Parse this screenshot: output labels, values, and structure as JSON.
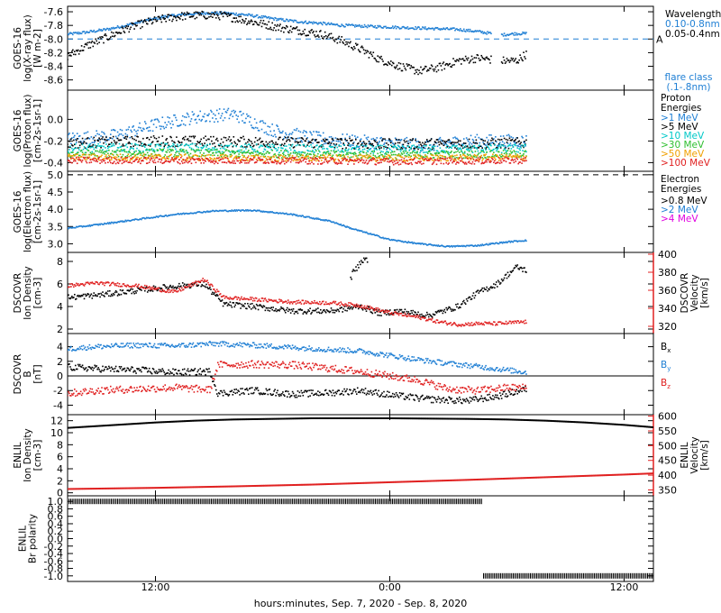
{
  "time_axis": {
    "tick_labels": [
      "12:00",
      "0:00",
      "12:00"
    ],
    "tick_hours": [
      12,
      24,
      36
    ],
    "title": "hours:minutes, Sep.  7, 2020 - Sep.  8, 2020",
    "range_hours": [
      7.5,
      37.5
    ]
  },
  "chart_data": [
    {
      "id": "xray",
      "type": "scatter",
      "ylabel": [
        "GOES-16",
        "log(X-ray flux)",
        "[W m-2]"
      ],
      "ylim": [
        -8.75,
        -7.52
      ],
      "yticks": [
        -7.6,
        -7.8,
        -8.0,
        -8.2,
        -8.4,
        -8.6
      ],
      "ytick_labels": [
        "-7.6",
        "-7.8",
        "-8.0",
        "-8.2",
        "-8.4",
        "-8.6"
      ],
      "legend_title": "Wavelength",
      "reference_line": {
        "y": -8.0,
        "label": "A",
        "color": "#1f7fd4"
      },
      "note": [
        "flare class",
        "(.1-.8nm)"
      ],
      "gaps": [
        [
          29.2,
          29.7
        ]
      ],
      "x_end": 31.0,
      "series": [
        {
          "name": "0.10-0.8nm",
          "color": "#1f7fd4",
          "x": [
            7.5,
            8.5,
            9.5,
            10.5,
            11.5,
            12.5,
            13.5,
            14.5,
            15.5,
            16.5,
            17.5,
            18.5,
            19.5,
            20.5,
            21.5,
            22.5,
            23.5,
            24.5,
            25.5,
            26.5,
            27.5,
            28.5,
            29.7,
            30.5,
            31.0
          ],
          "y": [
            -7.93,
            -7.9,
            -7.86,
            -7.8,
            -7.73,
            -7.67,
            -7.64,
            -7.62,
            -7.62,
            -7.64,
            -7.68,
            -7.72,
            -7.75,
            -7.77,
            -7.8,
            -7.81,
            -7.82,
            -7.83,
            -7.84,
            -7.85,
            -7.86,
            -7.89,
            -7.94,
            -7.92,
            -7.92
          ],
          "jitter": 0.02
        },
        {
          "name": "0.05-0.4nm",
          "color": "#000000",
          "x": [
            7.5,
            8.5,
            9.5,
            10.5,
            11.5,
            12.5,
            13.5,
            14.5,
            15.5,
            16.5,
            17.5,
            18.5,
            19.5,
            20.5,
            21.5,
            22.5,
            23.5,
            24.5,
            25.5,
            26.5,
            27.5,
            28.5,
            29.7,
            30.5,
            31.0
          ],
          "y": [
            -8.25,
            -8.1,
            -7.98,
            -7.85,
            -7.76,
            -7.7,
            -7.66,
            -7.65,
            -7.66,
            -7.72,
            -7.78,
            -7.84,
            -7.88,
            -7.93,
            -8.02,
            -8.15,
            -8.3,
            -8.4,
            -8.47,
            -8.42,
            -8.32,
            -8.28,
            -8.32,
            -8.32,
            -8.22
          ],
          "jitter": 0.06
        }
      ]
    },
    {
      "id": "proton",
      "type": "scatter",
      "ylabel": [
        "GOES-16",
        "log(Proton flux)",
        "[cm-2s-1sr-1]"
      ],
      "ylim": [
        -0.48,
        0.27
      ],
      "yticks": [
        0.0,
        -0.2,
        -0.4
      ],
      "ytick_labels": [
        "0.0",
        "-0.2",
        "-0.4"
      ],
      "legend_title": [
        "Proton",
        "Energies"
      ],
      "x_end": 31.0,
      "series": [
        {
          "name": ">1 MeV",
          "color": "#1f7fd4",
          "x": [
            7.5,
            10,
            12,
            14,
            16,
            18,
            20,
            22,
            24,
            26,
            28,
            31
          ],
          "y": [
            -0.18,
            -0.15,
            -0.05,
            0.02,
            0.05,
            -0.1,
            -0.17,
            -0.2,
            -0.22,
            -0.24,
            -0.2,
            -0.2
          ],
          "jitter": 0.06
        },
        {
          "name": ">5 MeV",
          "color": "#000000",
          "x": [
            7.5,
            12,
            18,
            24,
            31
          ],
          "y": [
            -0.22,
            -0.2,
            -0.21,
            -0.23,
            -0.22
          ],
          "jitter": 0.05
        },
        {
          "name": ">10 MeV",
          "color": "#00c8c8",
          "x": [
            7.5,
            12,
            18,
            24,
            31
          ],
          "y": [
            -0.27,
            -0.26,
            -0.27,
            -0.28,
            -0.27
          ],
          "jitter": 0.04
        },
        {
          "name": ">30 MeV",
          "color": "#2fbf2f",
          "x": [
            7.5,
            12,
            18,
            24,
            31
          ],
          "y": [
            -0.32,
            -0.31,
            -0.32,
            -0.33,
            -0.32
          ],
          "jitter": 0.035
        },
        {
          "name": ">50 MeV",
          "color": "#f0a000",
          "x": [
            7.5,
            12,
            18,
            24,
            31
          ],
          "y": [
            -0.35,
            -0.35,
            -0.36,
            -0.36,
            -0.35
          ],
          "jitter": 0.03
        },
        {
          "name": ">100 MeV",
          "color": "#e02020",
          "x": [
            7.5,
            12,
            18,
            24,
            31
          ],
          "y": [
            -0.38,
            -0.38,
            -0.38,
            -0.39,
            -0.38
          ],
          "jitter": 0.03
        }
      ]
    },
    {
      "id": "electron",
      "type": "scatter",
      "ylabel": [
        "GOES-16",
        "log(Electron flux)",
        "[cm-2s-1sr-1]"
      ],
      "ylim": [
        2.75,
        5.1
      ],
      "yticks": [
        5.0,
        4.5,
        4.0,
        3.5,
        3.0
      ],
      "ytick_labels": [
        "5.0",
        "4.5",
        "4.0",
        "3.5",
        "3.0"
      ],
      "legend_title": [
        "Electron",
        "Energies"
      ],
      "reference_line": {
        "y": 5.0,
        "color": "#000000"
      },
      "x_end": 31.0,
      "series": [
        {
          "name": ">0.8 MeV",
          "color": "#000000",
          "x": [],
          "y": []
        },
        {
          "name": ">2 MeV",
          "color": "#1f7fd4",
          "x": [
            7.5,
            9,
            11,
            13,
            15,
            17,
            19,
            21,
            22,
            24,
            25.5,
            27,
            28.5,
            30,
            31
          ],
          "y": [
            3.45,
            3.55,
            3.7,
            3.85,
            3.95,
            3.97,
            3.85,
            3.65,
            3.45,
            3.12,
            3.0,
            2.92,
            2.95,
            3.05,
            3.1
          ],
          "jitter": 0.02
        },
        {
          "name": ">4 MeV",
          "color": "#e000e0",
          "x": [],
          "y": []
        }
      ]
    },
    {
      "id": "dscovr_plasma",
      "type": "scatter",
      "ylabel": [
        "DSCOVR",
        "Ion Density",
        "[cm-3]"
      ],
      "ylim": [
        1.6,
        8.8
      ],
      "yticks": [
        8,
        6,
        4,
        2
      ],
      "ytick_labels": [
        "8",
        "6",
        "4",
        "2"
      ],
      "right_axis": {
        "label": [
          "DSCOVR",
          "Velocity",
          "[km/s]"
        ],
        "color": "#e02020",
        "ylim": [
          312,
          402
        ],
        "yticks": [
          400,
          380,
          360,
          340,
          320
        ],
        "ytick_labels": [
          "400",
          "380",
          "360",
          "340",
          "320"
        ]
      },
      "x_end": 31.0,
      "series": [
        {
          "name": "Ion Density",
          "color": "#000000",
          "axis": "left",
          "x": [
            7.5,
            9,
            11,
            13,
            14.5,
            15.5,
            17,
            19,
            21,
            22.5,
            23.5,
            24.5,
            26,
            27.5,
            28.5,
            29.5,
            30.5,
            31
          ],
          "y": [
            4.8,
            5.0,
            5.4,
            5.8,
            6.0,
            4.2,
            4.0,
            3.6,
            3.6,
            4.0,
            3.4,
            3.6,
            3.2,
            4.0,
            5.2,
            6.0,
            7.5,
            7.2
          ],
          "jitter": 0.25
        },
        {
          "name": "Ion Density spike",
          "color": "#000000",
          "axis": "left",
          "x": [
            22.0,
            22.3,
            22.6,
            22.9
          ],
          "y": [
            6.5,
            7.5,
            8.2,
            7.8
          ],
          "jitter": 0.4
        },
        {
          "name": "Velocity",
          "color": "#e02020",
          "axis": "right",
          "x": [
            7.5,
            9,
            11,
            13,
            14.5,
            15.5,
            17,
            19,
            21,
            22.5,
            24,
            25.5,
            26.5,
            27.5,
            28.5,
            29.5,
            31
          ],
          "y": [
            365,
            368,
            365,
            358,
            372,
            352,
            350,
            347,
            346,
            343,
            335,
            330,
            325,
            322,
            323,
            323,
            325
          ],
          "jitter": 2.0
        }
      ]
    },
    {
      "id": "dscovr_mag",
      "type": "scatter",
      "ylabel": [
        "DSCOVR",
        "B",
        "[nT]"
      ],
      "ylim": [
        -5.3,
        5.8
      ],
      "yticks": [
        4,
        2,
        0,
        -2,
        -4
      ],
      "ytick_labels": [
        "4",
        "2",
        "0",
        "-2",
        "-4"
      ],
      "zero_line": true,
      "x_end": 31.0,
      "series": [
        {
          "name": "Bx",
          "label": "B",
          "sub": "x",
          "color": "#000000",
          "x": [
            7.5,
            9,
            11,
            13,
            14.8,
            15.2,
            17,
            19,
            21,
            22.5,
            24,
            26,
            28,
            29.5,
            31
          ],
          "y": [
            1.2,
            1.0,
            0.8,
            0.5,
            0.6,
            -2.4,
            -2.0,
            -2.5,
            -2.3,
            -2.0,
            -2.6,
            -3.2,
            -3.4,
            -2.8,
            -1.8
          ],
          "jitter": 0.45
        },
        {
          "name": "By",
          "label": "B",
          "sub": "y",
          "color": "#1f7fd4",
          "x": [
            7.5,
            9,
            11,
            13,
            15,
            17,
            19,
            21,
            22.5,
            24,
            25.5,
            27,
            28.5,
            30,
            31
          ],
          "y": [
            3.7,
            4.0,
            4.2,
            4.1,
            4.4,
            4.2,
            3.9,
            3.6,
            3.4,
            2.8,
            2.2,
            1.7,
            1.3,
            0.8,
            0.5
          ],
          "jitter": 0.35
        },
        {
          "name": "Bz",
          "label": "B",
          "sub": "z",
          "color": "#e02020",
          "x": [
            7.5,
            9,
            11,
            13,
            14.8,
            15.2,
            17,
            19,
            21,
            22.5,
            24,
            25.5,
            27,
            28.5,
            30,
            31
          ],
          "y": [
            -2.4,
            -2.0,
            -1.8,
            -1.6,
            -1.9,
            1.5,
            1.6,
            1.5,
            1.0,
            0.6,
            0.0,
            -0.6,
            -1.8,
            -2.0,
            -1.6,
            -1.6
          ],
          "jitter": 0.5
        }
      ]
    },
    {
      "id": "enlil_plasma",
      "type": "scatter",
      "ylabel": [
        "ENLIL",
        "Ion Density",
        "[cm-3]"
      ],
      "ylim": [
        -0.5,
        13.0
      ],
      "yticks": [
        12,
        10,
        8,
        6,
        4,
        2,
        0
      ],
      "ytick_labels": [
        "12",
        "10",
        "8",
        "6",
        "4",
        "2",
        "0"
      ],
      "right_axis": {
        "label": [
          "ENLIL",
          "Velocity",
          "[km/s]"
        ],
        "color": "#e02020",
        "ylim": [
          330,
          605
        ],
        "yticks": [
          600,
          550,
          500,
          450,
          400,
          350
        ],
        "ytick_labels": [
          "600",
          "550",
          "500",
          "450",
          "400",
          "350"
        ]
      },
      "x_end": 37.5,
      "series": [
        {
          "name": "Ion Density",
          "color": "#000000",
          "axis": "left",
          "x": [
            7.5,
            10,
            12,
            14,
            16,
            18,
            20,
            22,
            24,
            26,
            28,
            30,
            32,
            34,
            36,
            37.5
          ],
          "y": [
            10.8,
            11.3,
            11.7,
            12.0,
            12.2,
            12.3,
            12.4,
            12.4,
            12.4,
            12.35,
            12.3,
            12.2,
            12.0,
            11.7,
            11.3,
            10.9
          ],
          "jitter": 0.0
        },
        {
          "name": "Velocity",
          "color": "#e02020",
          "axis": "right",
          "x": [
            7.5,
            12,
            16,
            20,
            24,
            28,
            32,
            36,
            37.5
          ],
          "y": [
            353,
            357,
            362,
            368,
            376,
            384,
            393,
            402,
            406
          ],
          "jitter": 0.0
        }
      ]
    },
    {
      "id": "enlil_polarity",
      "type": "scatter",
      "ylabel": [
        "ENLIL",
        "Br polarity"
      ],
      "ylim": [
        -1.15,
        1.15
      ],
      "yticks": [
        1.0,
        0.8,
        0.6,
        0.4,
        0.2,
        0.0,
        -0.2,
        -0.4,
        -0.6,
        -0.8,
        -1.0
      ],
      "ytick_labels": [
        "1.0",
        "0.8",
        "0.6",
        "0.4",
        "0.2",
        "0.0",
        "-0.2",
        "-0.4",
        "-0.6",
        "-0.8",
        "-1.0"
      ],
      "x_end": 37.5,
      "series": [
        {
          "name": "polarity +1",
          "color": "#000000",
          "x": [
            7.5,
            28.7
          ],
          "y": [
            1.0,
            1.0
          ],
          "jitter": 0.0
        },
        {
          "name": "polarity -1",
          "color": "#000000",
          "x": [
            28.8,
            37.5
          ],
          "y": [
            -1.0,
            -1.0
          ],
          "jitter": 0.0
        }
      ]
    }
  ]
}
